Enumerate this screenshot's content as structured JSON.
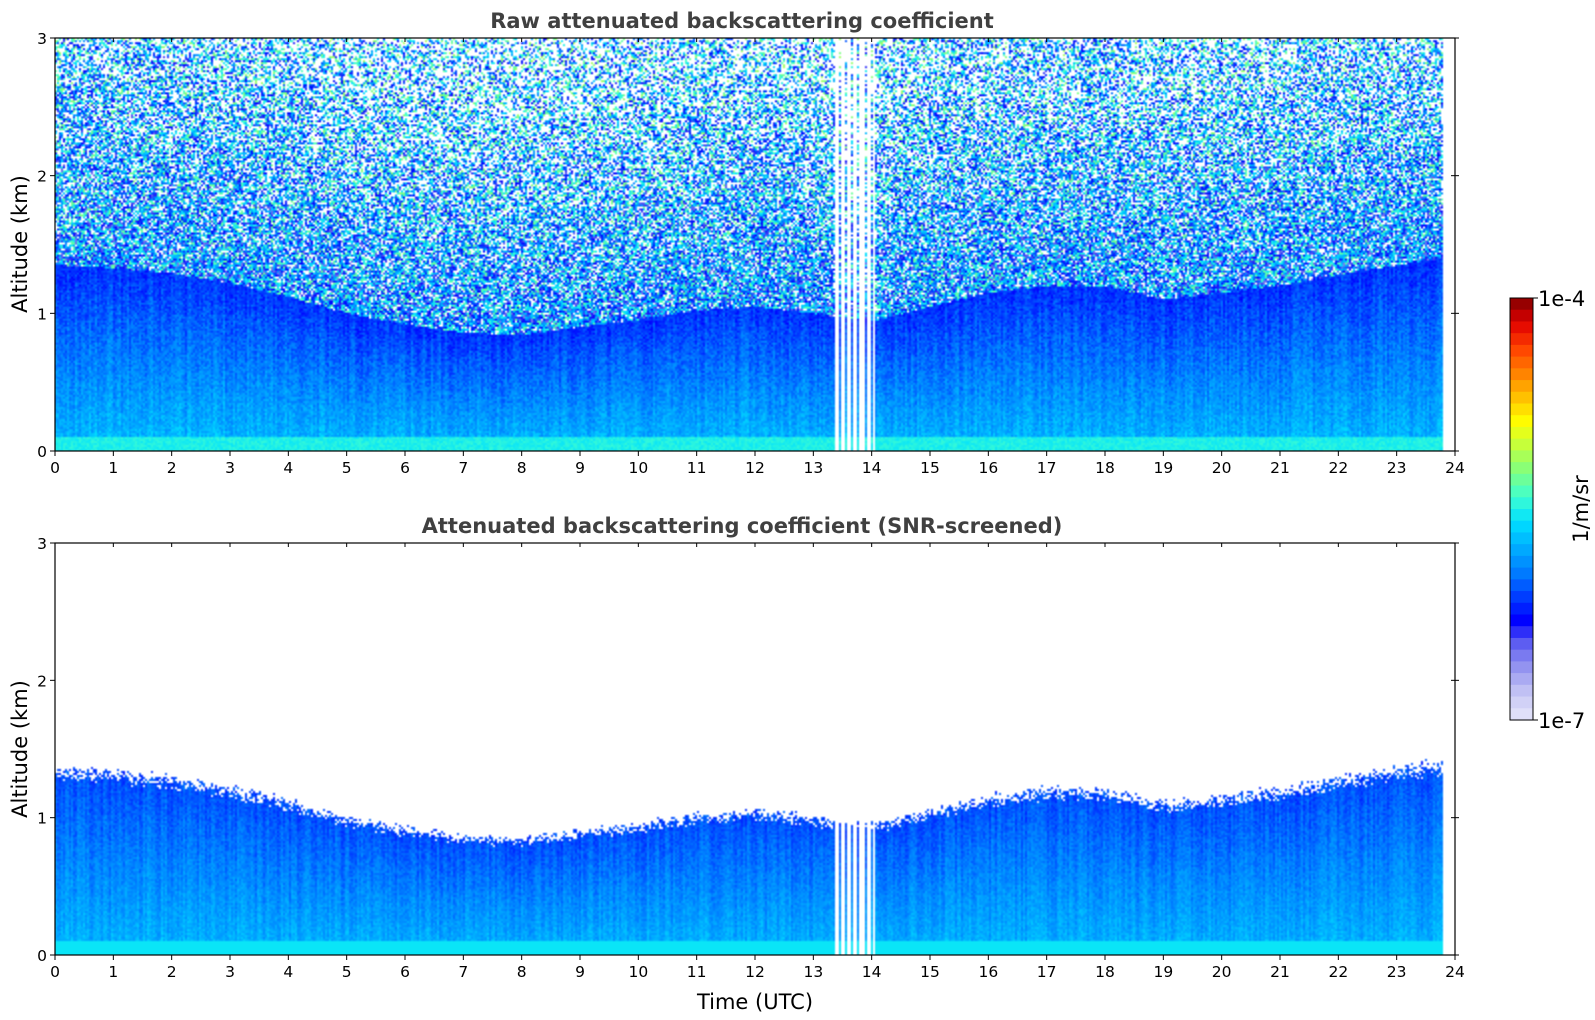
{
  "colors": {
    "colormap": [
      "#e6e6fa",
      "#c8c8f5",
      "#9a9af0",
      "#6464f0",
      "#0000ff",
      "#0040ff",
      "#0080ff",
      "#00b0ff",
      "#00e0ff",
      "#40ffd0",
      "#80ff80",
      "#c0ff40",
      "#ffff00",
      "#ffc000",
      "#ff8000",
      "#ff4000",
      "#e00000",
      "#800000"
    ],
    "frame": "#000000",
    "title_text": "#404040"
  },
  "colorbar": {
    "label": "1/m/sr",
    "max_label": "1e-4",
    "min_label": "1e-7",
    "range": [
      1e-07,
      0.0001
    ],
    "scale": "log"
  },
  "chart_data": [
    {
      "type": "heatmap",
      "title": "Raw attenuated backscattering coefficient",
      "xlabel": "",
      "ylabel": "Altitude (km)",
      "xlim": [
        0,
        24
      ],
      "ylim": [
        0,
        3
      ],
      "xticks": [
        "0",
        "1",
        "2",
        "3",
        "4",
        "5",
        "6",
        "7",
        "8",
        "9",
        "10",
        "11",
        "12",
        "13",
        "14",
        "15",
        "16",
        "17",
        "18",
        "19",
        "20",
        "21",
        "22",
        "23",
        "24"
      ],
      "yticks": [
        "0",
        "1",
        "2",
        "3"
      ],
      "data_extent_hours": [
        0,
        23.8
      ],
      "instrument_gap_hours": [
        13.35,
        14.05
      ],
      "noise_dominated_above_km": 1.2
    },
    {
      "type": "heatmap",
      "title": "Attenuated backscattering coefficient (SNR-screened)",
      "xlabel": "Time (UTC)",
      "ylabel": "Altitude (km)",
      "xlim": [
        0,
        24
      ],
      "ylim": [
        0,
        3
      ],
      "xticks": [
        "0",
        "1",
        "2",
        "3",
        "4",
        "5",
        "6",
        "7",
        "8",
        "9",
        "10",
        "11",
        "12",
        "13",
        "14",
        "15",
        "16",
        "17",
        "18",
        "19",
        "20",
        "21",
        "22",
        "23",
        "24"
      ],
      "yticks": [
        "0",
        "1",
        "2",
        "3"
      ],
      "data_extent_hours": [
        0,
        23.8
      ],
      "boundary_layer_top": {
        "time_hours": [
          0,
          1,
          2,
          3,
          4,
          5,
          6,
          7,
          8,
          9,
          10,
          11,
          12,
          13,
          13.3,
          14.1,
          15,
          16,
          17,
          18,
          19,
          20,
          21,
          22,
          23,
          23.8
        ],
        "altitude_km": [
          1.35,
          1.33,
          1.29,
          1.22,
          1.12,
          1.0,
          0.92,
          0.86,
          0.84,
          0.9,
          0.95,
          1.02,
          1.05,
          1.0,
          0.98,
          0.95,
          1.05,
          1.15,
          1.2,
          1.2,
          1.1,
          1.15,
          1.2,
          1.28,
          1.35,
          1.4
        ]
      }
    }
  ]
}
